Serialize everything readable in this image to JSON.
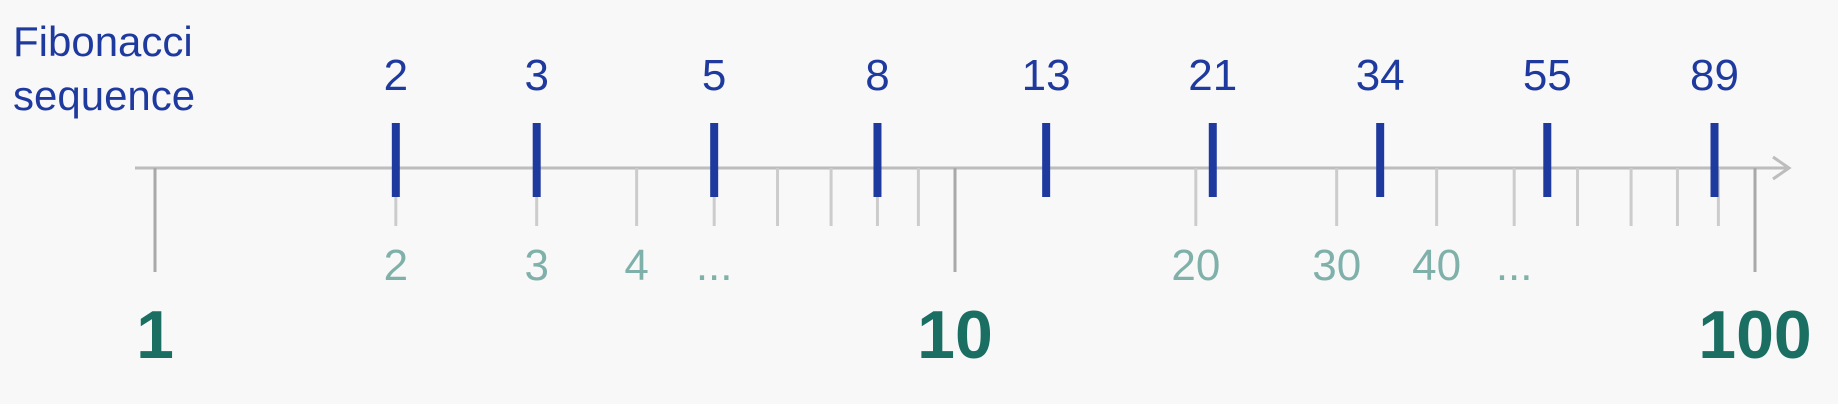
{
  "title": {
    "line1": "Fibonacci",
    "line2": "sequence"
  },
  "scale": {
    "type": "log",
    "min": 1,
    "max": 100
  },
  "fibonacci": [
    2,
    3,
    5,
    8,
    13,
    21,
    34,
    55,
    89
  ],
  "minor_ticks": [
    2,
    3,
    4,
    5,
    6,
    7,
    8,
    9,
    20,
    30,
    40,
    50,
    60,
    70,
    80,
    90
  ],
  "minor_labels": [
    {
      "value": 2,
      "text": "2"
    },
    {
      "value": 3,
      "text": "3"
    },
    {
      "value": 4,
      "text": "4"
    },
    {
      "value": 5,
      "text": "..."
    },
    {
      "value": 20,
      "text": "20"
    },
    {
      "value": 30,
      "text": "30"
    },
    {
      "value": 40,
      "text": "40"
    },
    {
      "value": 50,
      "text": "..."
    }
  ],
  "major_ticks": [
    {
      "value": 1,
      "text": "1"
    },
    {
      "value": 10,
      "text": "10"
    },
    {
      "value": 100,
      "text": "100"
    }
  ],
  "colors": {
    "fibonacci": "#1f3a9e",
    "minor_label": "#7fb1aa",
    "major_label": "#1a6e62",
    "axis": "#bdbdbd"
  }
}
